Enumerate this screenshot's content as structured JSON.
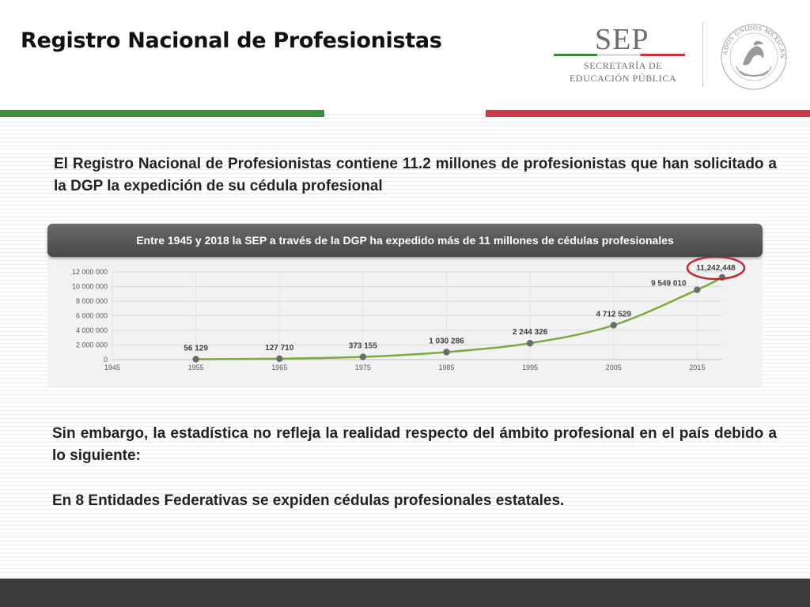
{
  "header": {
    "title": "Registro Nacional de Profesionistas",
    "logo": {
      "wordmark": "SEP",
      "line1": "SECRETARÍA DE",
      "line2": "EDUCACIÓN PÚBLICA"
    },
    "seal_text": "ESTADOS UNIDOS MEXICANOS"
  },
  "intro_text": "El Registro Nacional de Profesionistas contiene 11.2 millones de profesionistas que han solicitado a la DGP la expedición de su cédula profesional",
  "chart_banner": "Entre 1945 y 2018  la SEP a través de la DGP ha expedido más de 11 millones de cédulas profesionales",
  "chart_data": {
    "type": "line",
    "title": "",
    "xlabel": "",
    "ylabel": "",
    "xlim": [
      1945,
      2018
    ],
    "ylim": [
      0,
      12000000
    ],
    "x_ticks": [
      1945,
      1955,
      1965,
      1975,
      1985,
      1995,
      2005,
      2015
    ],
    "x_tick_labels": [
      "1945",
      "1955",
      "1965",
      "1975",
      "1985",
      "1995",
      "2005",
      "2015"
    ],
    "y_ticks": [
      0,
      2000000,
      4000000,
      6000000,
      8000000,
      10000000,
      12000000
    ],
    "y_tick_labels": [
      "0",
      "2 000 000",
      "4 000 000",
      "6 000 000",
      "8 000 000",
      "10 000 000",
      "12 000 000"
    ],
    "grid": true,
    "legend": "none",
    "line_color": "#7aab3c",
    "marker_color": "#6b6b6b",
    "highlight_color": "#c0282d",
    "series": [
      {
        "x": [
          1955,
          1965,
          1975,
          1985,
          1995,
          2005,
          2015,
          2018
        ],
        "y": [
          56129,
          127710,
          373155,
          1030286,
          2244326,
          4712529,
          9549010,
          11242448
        ],
        "labels": [
          "56 129",
          "127 710",
          "373 155",
          "1 030 286",
          "2 244 326",
          "4 712 529",
          "9 549 010",
          "11,242,448"
        ]
      }
    ],
    "highlighted_point_index": 7
  },
  "paragraph_1": "Sin embargo, la estadística no refleja la realidad respecto del ámbito profesional en el país debido a lo siguiente:",
  "paragraph_2": "En 8 Entidades Federativas  se expiden cédulas profesionales estatales."
}
